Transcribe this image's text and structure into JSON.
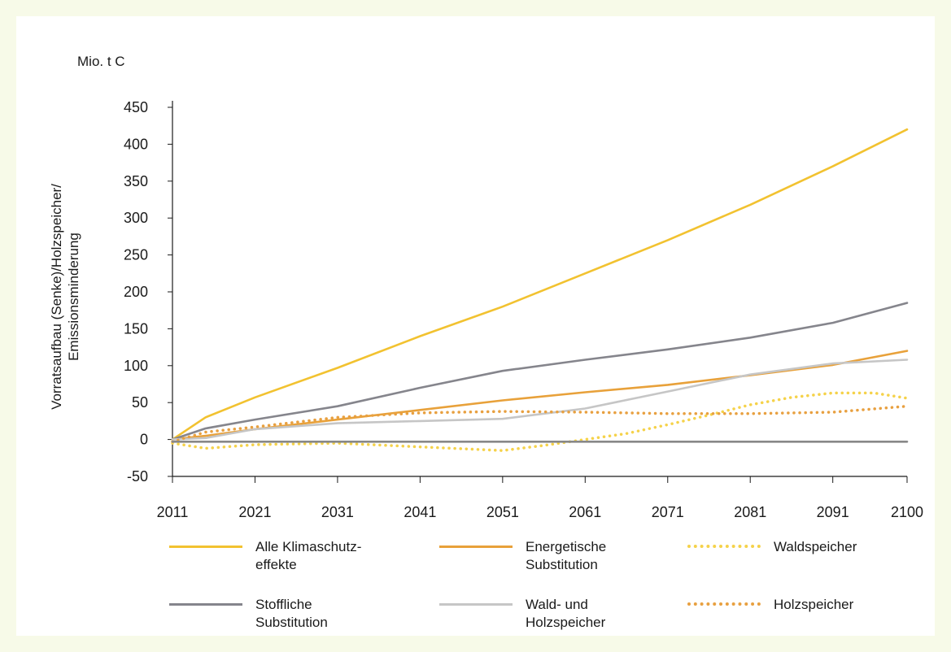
{
  "chart_data": {
    "type": "line",
    "unit_label": "Mio. t C",
    "ylabel_lines": [
      "Vorratsaufbau (Senke)/Holzspeicher/",
      "Emissionsminderung"
    ],
    "xlabel": "",
    "x_ticks": [
      2011,
      2021,
      2031,
      2041,
      2051,
      2061,
      2071,
      2081,
      2091,
      2100
    ],
    "y_ticks": [
      -50,
      0,
      50,
      100,
      150,
      200,
      250,
      300,
      350,
      400,
      450
    ],
    "xlim": [
      2011,
      2100
    ],
    "ylim": [
      -50,
      450
    ],
    "grid": false,
    "legend_position": "bottom",
    "series": [
      {
        "name": "Alle Klimaschutz-\neffekte",
        "color": "#f2c230",
        "style": "solid",
        "x": [
          2011,
          2015,
          2021,
          2031,
          2041,
          2051,
          2061,
          2071,
          2081,
          2091,
          2100
        ],
        "y": [
          0,
          30,
          57,
          97,
          140,
          180,
          225,
          270,
          318,
          370,
          420
        ]
      },
      {
        "name": "Energetische\nSubstitution",
        "color": "#e8a13a",
        "style": "solid",
        "x": [
          2011,
          2015,
          2021,
          2031,
          2041,
          2051,
          2061,
          2071,
          2081,
          2091,
          2100
        ],
        "y": [
          0,
          5,
          14,
          27,
          40,
          53,
          64,
          74,
          87,
          101,
          120
        ]
      },
      {
        "name": "Waldspeicher",
        "color": "#f5d24a",
        "style": "dotted",
        "x": [
          2011,
          2015,
          2021,
          2031,
          2041,
          2051,
          2056,
          2061,
          2066,
          2071,
          2076,
          2081,
          2086,
          2091,
          2096,
          2100
        ],
        "y": [
          -5,
          -12,
          -7,
          -5,
          -10,
          -15,
          -8,
          0,
          8,
          20,
          33,
          47,
          57,
          63,
          63,
          56
        ]
      },
      {
        "name": "Stoffliche\nSubstitution",
        "color": "#85858c",
        "style": "solid",
        "x": [
          2011,
          2015,
          2021,
          2031,
          2041,
          2051,
          2061,
          2071,
          2081,
          2091,
          2100
        ],
        "y": [
          0,
          15,
          27,
          45,
          70,
          93,
          108,
          122,
          138,
          158,
          185
        ]
      },
      {
        "name": "Wald- und\nHolzspeicher",
        "color": "#c6c6c6",
        "style": "solid",
        "x": [
          2011,
          2015,
          2021,
          2031,
          2041,
          2051,
          2061,
          2071,
          2081,
          2091,
          2100
        ],
        "y": [
          0,
          2,
          14,
          22,
          25,
          28,
          42,
          65,
          88,
          103,
          108
        ]
      },
      {
        "name": "Holzspeicher",
        "color": "#e8a040",
        "style": "dotted",
        "x": [
          2011,
          2015,
          2021,
          2031,
          2041,
          2051,
          2061,
          2071,
          2081,
          2091,
          2100
        ],
        "y": [
          -3,
          10,
          17,
          30,
          36,
          38,
          37,
          35,
          35,
          37,
          45
        ]
      },
      {
        "name": "",
        "color": "#888888",
        "style": "solid",
        "x": [
          2011,
          2100
        ],
        "y": [
          -3,
          -3
        ]
      }
    ]
  },
  "legend": [
    {
      "label": "Alle Klimaschutz-\neffekte",
      "color": "#f2c230",
      "style": "solid"
    },
    {
      "label": "Energetische\nSubstitution",
      "color": "#e8a13a",
      "style": "solid"
    },
    {
      "label": "Waldspeicher",
      "color": "#f5d24a",
      "style": "dotted"
    },
    {
      "label": "Stoffliche\nSubstitution",
      "color": "#85858c",
      "style": "solid"
    },
    {
      "label": "Wald- und\nHolzspeicher",
      "color": "#c6c6c6",
      "style": "solid"
    },
    {
      "label": "Holzspeicher",
      "color": "#e8a040",
      "style": "dotted"
    }
  ],
  "colors": {
    "page_background": "#f7fae8",
    "panel_background": "#ffffff",
    "axis": "#1a1a1a"
  }
}
